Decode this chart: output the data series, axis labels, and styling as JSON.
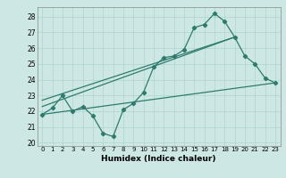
{
  "title": "",
  "xlabel": "Humidex (Indice chaleur)",
  "xlim": [
    -0.5,
    23.5
  ],
  "ylim": [
    19.8,
    28.6
  ],
  "xticks": [
    0,
    1,
    2,
    3,
    4,
    5,
    6,
    7,
    8,
    9,
    10,
    11,
    12,
    13,
    14,
    15,
    16,
    17,
    18,
    19,
    20,
    21,
    22,
    23
  ],
  "yticks": [
    20,
    21,
    22,
    23,
    24,
    25,
    26,
    27,
    28
  ],
  "bg_color": "#cde8e4",
  "grid_color": "#afd4ce",
  "line_color": "#2e7b6e",
  "line1_x": [
    0,
    1,
    2,
    3,
    4,
    5,
    6,
    7,
    8,
    9,
    10,
    11,
    12,
    13,
    14,
    15,
    16,
    17,
    18,
    19,
    20,
    21,
    22,
    23
  ],
  "line1_y": [
    21.8,
    22.2,
    23.0,
    22.0,
    22.3,
    21.7,
    20.6,
    20.4,
    22.1,
    22.5,
    23.2,
    24.8,
    25.4,
    25.5,
    25.9,
    27.3,
    27.5,
    28.2,
    27.7,
    26.7,
    25.5,
    25.0,
    24.1,
    23.8
  ],
  "line2_x": [
    0,
    19
  ],
  "line2_y": [
    22.3,
    26.7
  ],
  "line3_x": [
    0,
    23
  ],
  "line3_y": [
    21.8,
    23.8
  ],
  "line4_x": [
    0,
    19
  ],
  "line4_y": [
    22.7,
    26.7
  ]
}
